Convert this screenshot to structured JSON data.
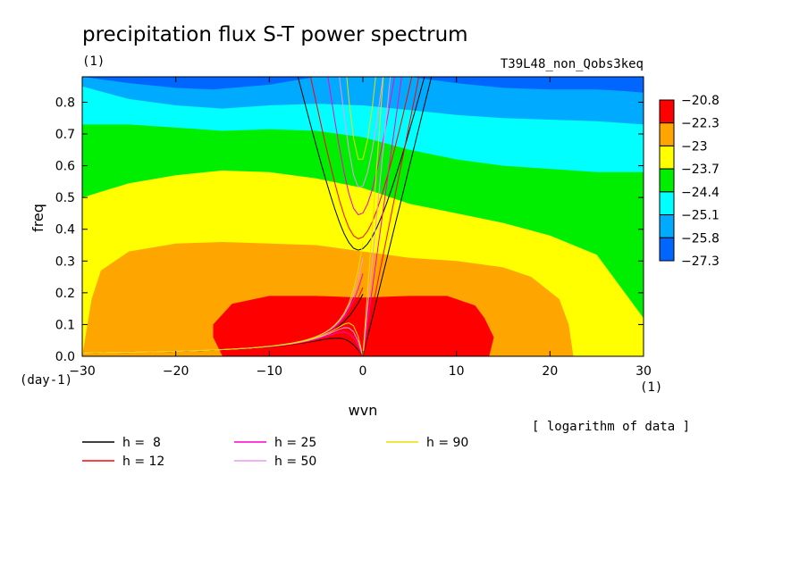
{
  "chart_data": {
    "type": "heatmap",
    "title": "precipitation flux S-T power spectrum",
    "subtitle_left": "(1)",
    "subtitle_right": "T39L48_non_Qobs3keq",
    "xlabel": "wvn",
    "ylabel": "freq",
    "x_unit": "(1)",
    "y_unit": "(day-1)",
    "xlim": [
      -30,
      30
    ],
    "ylim": [
      0,
      0.88
    ],
    "xticks": [
      -30,
      -20,
      -10,
      0,
      10,
      20,
      30
    ],
    "yticks": [
      0.0,
      0.1,
      0.2,
      0.3,
      0.4,
      0.5,
      0.6,
      0.7,
      0.8
    ],
    "note": "[ logarithm of data ]",
    "colorbar": {
      "labels": [
        "-20.8",
        "-22.3",
        "-23",
        "-23.7",
        "-24.4",
        "-25.1",
        "-25.8",
        "-27.3"
      ],
      "colors": [
        "#ff0000",
        "#ffa500",
        "#ffff00",
        "#00ee00",
        "#00ffff",
        "#00aaff",
        "#0066ff"
      ]
    },
    "contour_bands": [
      {
        "color": "#0066ff",
        "boundary": [
          [
            -30,
            0.88
          ],
          [
            -30,
            0.88
          ]
        ]
      },
      {
        "color": "#00aaff",
        "boundary": [
          [
            -30,
            0.88
          ],
          [
            -25,
            0.86
          ],
          [
            -20,
            0.845
          ],
          [
            -16,
            0.84
          ],
          [
            -10,
            0.855
          ],
          [
            -5,
            0.88
          ],
          [
            5,
            0.88
          ],
          [
            10,
            0.86
          ],
          [
            15,
            0.845
          ],
          [
            20,
            0.84
          ],
          [
            25,
            0.84
          ],
          [
            28,
            0.835
          ],
          [
            30,
            0.83
          ]
        ]
      },
      {
        "color": "#00ffff",
        "boundary": [
          [
            -30,
            0.85
          ],
          [
            -25,
            0.81
          ],
          [
            -20,
            0.79
          ],
          [
            -15,
            0.78
          ],
          [
            -10,
            0.79
          ],
          [
            -5,
            0.795
          ],
          [
            0,
            0.79
          ],
          [
            5,
            0.775
          ],
          [
            10,
            0.76
          ],
          [
            15,
            0.75
          ],
          [
            20,
            0.745
          ],
          [
            25,
            0.74
          ],
          [
            30,
            0.73
          ]
        ]
      },
      {
        "color": "#00ee00",
        "boundary": [
          [
            -30,
            0.73
          ],
          [
            -25,
            0.73
          ],
          [
            -20,
            0.72
          ],
          [
            -15,
            0.71
          ],
          [
            -10,
            0.715
          ],
          [
            -5,
            0.71
          ],
          [
            0,
            0.69
          ],
          [
            5,
            0.65
          ],
          [
            10,
            0.62
          ],
          [
            15,
            0.6
          ],
          [
            20,
            0.59
          ],
          [
            25,
            0.58
          ],
          [
            30,
            0.58
          ]
        ]
      },
      {
        "color": "#ffff00",
        "boundary": [
          [
            -30,
            0.5
          ],
          [
            -25,
            0.545
          ],
          [
            -20,
            0.57
          ],
          [
            -15,
            0.585
          ],
          [
            -10,
            0.58
          ],
          [
            -5,
            0.56
          ],
          [
            0,
            0.53
          ],
          [
            5,
            0.48
          ],
          [
            10,
            0.45
          ],
          [
            15,
            0.42
          ],
          [
            20,
            0.38
          ],
          [
            25,
            0.32
          ],
          [
            28,
            0.2
          ],
          [
            30,
            0.12
          ]
        ]
      },
      {
        "color": "#ffa500",
        "boundary": [
          [
            -30,
            0.0
          ],
          [
            -29,
            0.18
          ],
          [
            -28,
            0.27
          ],
          [
            -25,
            0.33
          ],
          [
            -20,
            0.355
          ],
          [
            -15,
            0.36
          ],
          [
            -10,
            0.355
          ],
          [
            -5,
            0.35
          ],
          [
            0,
            0.33
          ],
          [
            5,
            0.31
          ],
          [
            10,
            0.3
          ],
          [
            15,
            0.28
          ],
          [
            18,
            0.25
          ],
          [
            21,
            0.18
          ],
          [
            22,
            0.1
          ],
          [
            22.5,
            0.0
          ]
        ]
      },
      {
        "color": "#ff0000",
        "boundary": [
          [
            -15,
            0.0
          ],
          [
            -16,
            0.06
          ],
          [
            -16,
            0.1
          ],
          [
            -14,
            0.165
          ],
          [
            -10,
            0.19
          ],
          [
            -5,
            0.19
          ],
          [
            0,
            0.185
          ],
          [
            5,
            0.19
          ],
          [
            9,
            0.19
          ],
          [
            12,
            0.16
          ],
          [
            13,
            0.12
          ],
          [
            14,
            0.06
          ],
          [
            13.5,
            0.0
          ]
        ]
      }
    ],
    "dispersion_curves": [
      {
        "name": "h =  8",
        "color": "#000000",
        "equivalent_depth": 8
      },
      {
        "name": "h = 12",
        "color": "#ff0000",
        "equivalent_depth": 12
      },
      {
        "name": "h = 25",
        "color": "#ff00cc",
        "equivalent_depth": 25
      },
      {
        "name": "h = 50",
        "color": "#ee99ee",
        "equivalent_depth": 50
      },
      {
        "name": "h = 90",
        "color": "#eedd00",
        "equivalent_depth": 90
      }
    ]
  }
}
